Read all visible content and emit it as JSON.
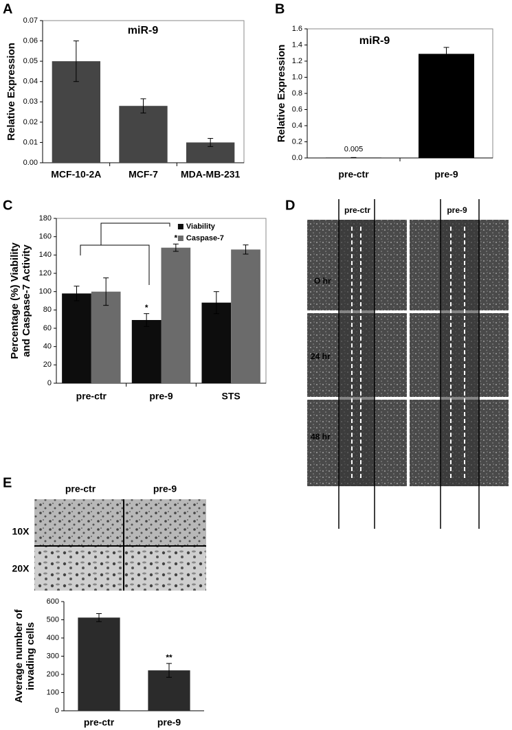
{
  "panel_labels": [
    "A",
    "B",
    "C",
    "D",
    "E"
  ],
  "chart_data": [
    {
      "type": "bar",
      "title": "miR-9",
      "y_label": [
        "Relative Expression"
      ],
      "categories": [
        "MCF-10-2A",
        "MCF-7",
        "MDA-MB-231"
      ],
      "series": [
        {
          "name": "miR-9",
          "color": "#454545",
          "values": [
            0.05,
            0.028,
            0.01
          ],
          "errors": [
            0.01,
            0.0035,
            0.002
          ]
        }
      ],
      "ylim": [
        0,
        0.07
      ],
      "yticks": [
        {
          "value": 0,
          "label": "0.00"
        },
        {
          "value": 0.01,
          "label": "0.01"
        },
        {
          "value": 0.02,
          "label": "0.02"
        },
        {
          "value": 0.03,
          "label": "0.03"
        },
        {
          "value": 0.04,
          "label": "0.04"
        },
        {
          "value": 0.05,
          "label": "0.05"
        },
        {
          "value": 0.06,
          "label": "0.06"
        },
        {
          "value": 0.07,
          "label": "0.07"
        }
      ],
      "grid": false,
      "legend": false
    },
    {
      "type": "bar",
      "title": "miR-9",
      "y_label": [
        "Relative Expression"
      ],
      "categories": [
        "pre-ctr",
        "pre-9"
      ],
      "series": [
        {
          "name": "miR-9",
          "color": "#000000",
          "values": [
            0.005,
            1.29
          ],
          "errors": [
            0,
            0.08
          ],
          "value_labels": [
            "0.005",
            null
          ]
        }
      ],
      "ylim": [
        0,
        1.6
      ],
      "yticks": [
        {
          "value": 0,
          "label": "0.0"
        },
        {
          "value": 0.2,
          "label": "0.2"
        },
        {
          "value": 0.4,
          "label": "0.4"
        },
        {
          "value": 0.6,
          "label": "0.6"
        },
        {
          "value": 0.8,
          "label": "0.8"
        },
        {
          "value": 1,
          "label": "1.0"
        },
        {
          "value": 1.2,
          "label": "1.2"
        },
        {
          "value": 1.4,
          "label": "1.4"
        },
        {
          "value": 1.6,
          "label": "1.6"
        }
      ],
      "grid": false,
      "legend": false
    },
    {
      "type": "bar",
      "y_label": [
        "Percentage (%) Viability",
        "and Caspase-7 Activity"
      ],
      "categories": [
        "pre-ctr",
        "pre-9",
        "STS"
      ],
      "series": [
        {
          "name": "Viability",
          "color": "#0d0d0d",
          "values": [
            98,
            69,
            88
          ],
          "errors": [
            8,
            7,
            12
          ],
          "significance": [
            null,
            "*",
            null
          ]
        },
        {
          "name": "Caspase-7",
          "color": "#6b6b6b",
          "values": [
            100,
            148,
            146
          ],
          "errors": [
            15,
            4,
            5
          ],
          "significance": [
            null,
            "*",
            null
          ]
        }
      ],
      "ylim": [
        0,
        180
      ],
      "yticks": [
        0,
        20,
        40,
        60,
        80,
        100,
        120,
        140,
        160,
        180
      ],
      "grid": false,
      "legend": "upper right"
    },
    {
      "type": "bar",
      "y_label": [
        "Average number of",
        "invading cells"
      ],
      "categories": [
        "pre-ctr",
        "pre-9"
      ],
      "series": [
        {
          "name": "invading cells",
          "color": "#2b2b2b",
          "values": [
            512,
            222
          ],
          "errors": [
            22,
            38
          ],
          "significance": [
            null,
            "**"
          ]
        }
      ],
      "ylim": [
        0,
        600
      ],
      "yticks": [
        0,
        100,
        200,
        300,
        400,
        500,
        600
      ],
      "grid": false,
      "legend": false
    }
  ],
  "wound_assay": {
    "columns": [
      "pre-ctr",
      "pre-9"
    ],
    "rows": [
      "O hr",
      "24 hr",
      "48 hr"
    ]
  },
  "invasion_assay": {
    "columns": [
      "pre-ctr",
      "pre-9"
    ],
    "rows": [
      "10X",
      "20X"
    ]
  }
}
